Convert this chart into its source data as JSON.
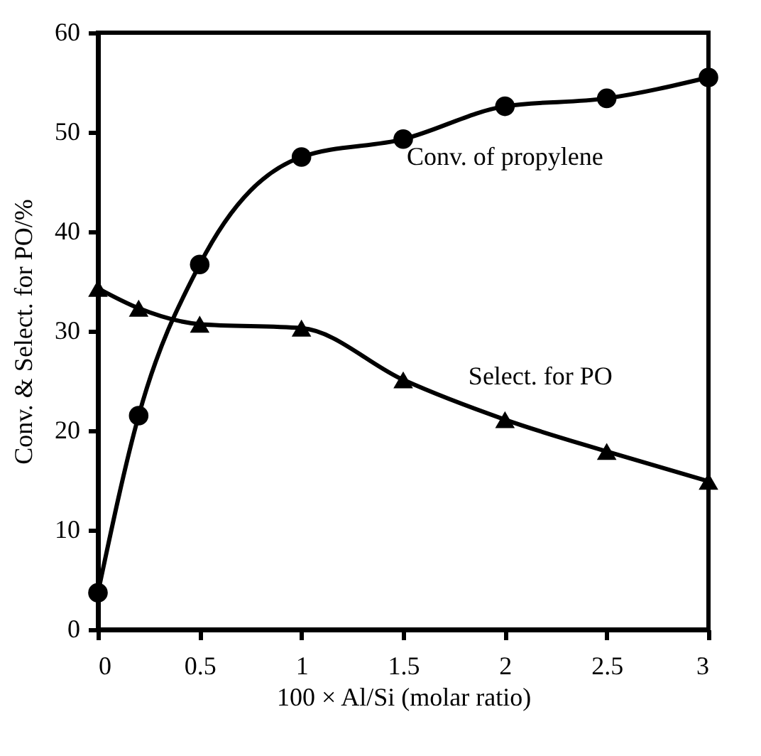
{
  "chart_data": {
    "type": "line",
    "xlabel": "100 × Al/Si (molar ratio)",
    "ylabel": "Conv. & Select. for PO/%",
    "xlim": [
      0,
      3
    ],
    "xticks": [
      0,
      0.5,
      1,
      1.5,
      2,
      2.5,
      3
    ],
    "ylim": [
      0,
      60
    ],
    "yticks": [
      0,
      10,
      20,
      30,
      40,
      50,
      60
    ],
    "grid": false,
    "line_style": "solid",
    "series": [
      {
        "name": "Conv. of propylene",
        "color": "#000000",
        "marker": "circle",
        "x": [
          0,
          0.2,
          0.5,
          1,
          1.5,
          2,
          2.5,
          3
        ],
        "values": [
          3.7,
          21.5,
          36.7,
          47.5,
          49.3,
          52.6,
          53.4,
          55.5
        ]
      },
      {
        "name": "Select. for PO",
        "color": "#000000",
        "marker": "triangle",
        "x": [
          0,
          0.2,
          0.5,
          1,
          1.5,
          2,
          2.5,
          3
        ],
        "values": [
          34.3,
          32.3,
          30.7,
          30.3,
          25.1,
          21.1,
          17.9,
          14.9
        ]
      }
    ]
  }
}
